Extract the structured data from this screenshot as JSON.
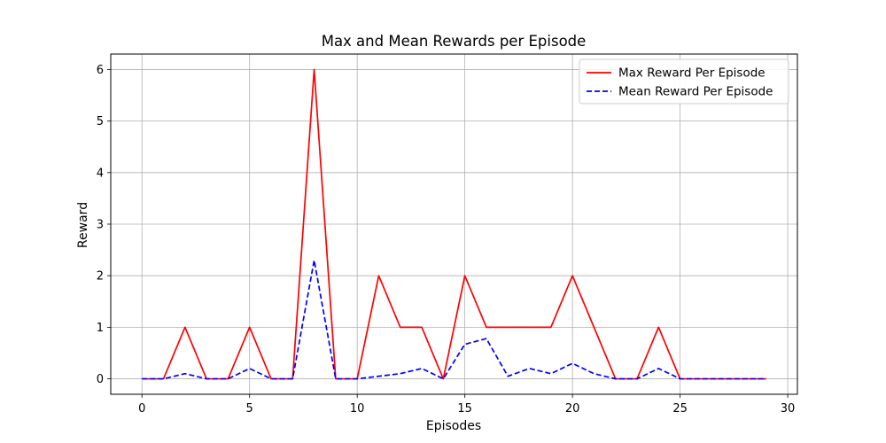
{
  "chart_data": {
    "type": "line",
    "title": "Max and Mean Rewards per Episode",
    "xlabel": "Episodes",
    "ylabel": "Reward",
    "xlim": [
      -1.45,
      30.45
    ],
    "ylim": [
      -0.3,
      6.3
    ],
    "xticks": [
      0,
      5,
      10,
      15,
      20,
      25,
      30
    ],
    "yticks": [
      0,
      1,
      2,
      3,
      4,
      5,
      6
    ],
    "grid": true,
    "legend_position": "top-right",
    "x": [
      0,
      1,
      2,
      3,
      4,
      5,
      6,
      7,
      8,
      9,
      10,
      11,
      12,
      13,
      14,
      15,
      16,
      17,
      18,
      19,
      20,
      21,
      22,
      23,
      24,
      25,
      26,
      27,
      28,
      29
    ],
    "series": [
      {
        "name": "Max Reward Per Episode",
        "color": "#ff0000",
        "style": "solid",
        "values": [
          0,
          0,
          1,
          0,
          0,
          1,
          0,
          0,
          6,
          0,
          0,
          2,
          1,
          1,
          0,
          2,
          1,
          1,
          1,
          1,
          2,
          1,
          0,
          0,
          1,
          0,
          0,
          0,
          0,
          0
        ]
      },
      {
        "name": "Mean Reward Per Episode",
        "color": "#0000ff",
        "style": "dashed",
        "values": [
          0,
          0,
          0.1,
          0,
          0,
          0.2,
          0,
          0,
          2.3,
          0,
          0,
          0.05,
          0.1,
          0.2,
          0,
          0.67,
          0.78,
          0.05,
          0.2,
          0.1,
          0.3,
          0.1,
          0,
          0,
          0.2,
          0,
          0,
          0,
          0,
          0
        ]
      }
    ]
  }
}
